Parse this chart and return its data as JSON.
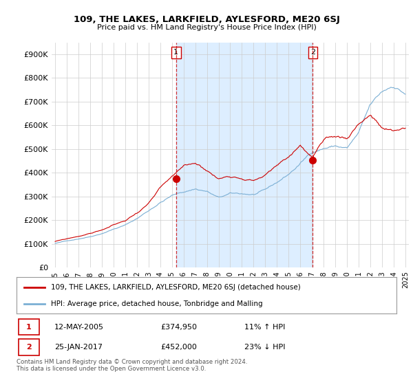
{
  "title": "109, THE LAKES, LARKFIELD, AYLESFORD, ME20 6SJ",
  "subtitle": "Price paid vs. HM Land Registry's House Price Index (HPI)",
  "legend_line1": "109, THE LAKES, LARKFIELD, AYLESFORD, ME20 6SJ (detached house)",
  "legend_line2": "HPI: Average price, detached house, Tonbridge and Malling",
  "footnote": "Contains HM Land Registry data © Crown copyright and database right 2024.\nThis data is licensed under the Open Government Licence v3.0.",
  "event1_date": "12-MAY-2005",
  "event1_price": "£374,950",
  "event1_hpi": "11% ↑ HPI",
  "event2_date": "25-JAN-2017",
  "event2_price": "£452,000",
  "event2_hpi": "23% ↓ HPI",
  "red_color": "#cc0000",
  "blue_color": "#7bafd4",
  "shade_color": "#ddeeff",
  "background_color": "#ffffff",
  "grid_color": "#cccccc",
  "ytick_labels": [
    "£0",
    "£100K",
    "£200K",
    "£300K",
    "£400K",
    "£500K",
    "£600K",
    "£700K",
    "£800K",
    "£900K"
  ],
  "yticks": [
    0,
    100000,
    200000,
    300000,
    400000,
    500000,
    600000,
    700000,
    800000,
    900000
  ],
  "event1_x": 2005.36,
  "event2_x": 2017.07,
  "event1_y": 374950,
  "event2_y": 452000,
  "xmin": 1994.7,
  "xmax": 2025.3,
  "ymin": 0,
  "ymax": 950000
}
